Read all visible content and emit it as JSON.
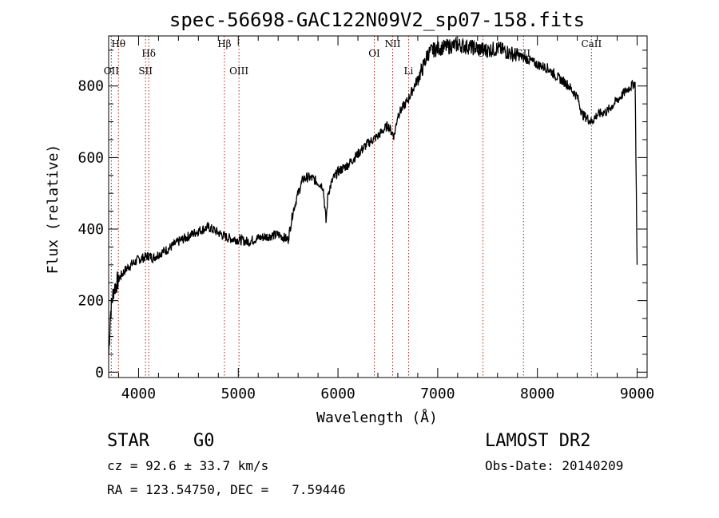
{
  "chart_data": {
    "type": "line",
    "title": "spec-56698-GAC122N09V2_sp07-158.fits",
    "xlabel": "Wavelength (Å)",
    "ylabel": "Flux (relative)",
    "xlim": [
      3700,
      9100
    ],
    "ylim": [
      -15,
      940
    ],
    "x_ticks": [
      4000,
      5000,
      6000,
      7000,
      8000,
      9000
    ],
    "y_ticks": [
      0,
      200,
      400,
      600,
      800
    ],
    "grid": false,
    "series": [
      {
        "x": [
          3700,
          3720,
          3750,
          3800,
          3850,
          3900,
          3950,
          4000,
          4050,
          4100,
          4150,
          4200,
          4300,
          4400,
          4500,
          4600,
          4700,
          4800,
          4860,
          4900,
          5000,
          5100,
          5200,
          5300,
          5400,
          5500,
          5550,
          5600,
          5650,
          5700,
          5750,
          5800,
          5850,
          5880,
          5900,
          5950,
          6000,
          6100,
          6200,
          6300,
          6400,
          6500,
          6563,
          6600,
          6700,
          6800,
          6850,
          6900,
          6950,
          7000,
          7100,
          7200,
          7300,
          7400,
          7500,
          7600,
          7700,
          7800,
          7900,
          8000,
          8100,
          8200,
          8300,
          8400,
          8450,
          8500,
          8542,
          8600,
          8700,
          8800,
          8900,
          8980,
          9000
        ],
        "y": [
          50,
          170,
          230,
          260,
          280,
          295,
          305,
          315,
          320,
          325,
          320,
          330,
          345,
          365,
          380,
          395,
          405,
          390,
          380,
          375,
          370,
          365,
          375,
          380,
          385,
          370,
          450,
          500,
          540,
          545,
          540,
          530,
          520,
          420,
          500,
          540,
          560,
          580,
          610,
          640,
          660,
          690,
          660,
          720,
          760,
          820,
          850,
          890,
          900,
          905,
          910,
          915,
          910,
          905,
          900,
          905,
          895,
          885,
          875,
          860,
          850,
          825,
          805,
          770,
          720,
          710,
          700,
          720,
          730,
          760,
          790,
          810,
          300
        ]
      }
    ],
    "lines": [
      {
        "label": "Hθ",
        "x": 3798,
        "row": 0
      },
      {
        "label": "OII",
        "x": 3727,
        "row": 1
      },
      {
        "label": "Hδ",
        "x": 4102,
        "row": 0.5
      },
      {
        "label": "SII",
        "x": 4070,
        "row": 1
      },
      {
        "label": "Hβ",
        "x": 4861,
        "row": 0
      },
      {
        "label": "OIII",
        "x": 5007,
        "row": 1
      },
      {
        "label": "OI",
        "x": 6364,
        "row": 0.5
      },
      {
        "label": "NII",
        "x": 6548,
        "row": 0
      },
      {
        "label": "Li",
        "x": 6708,
        "row": 1
      },
      {
        "label": "OI",
        "x": 7454,
        "row": 0.5
      },
      {
        "label": "SII",
        "x": 7860,
        "row": 0.5
      },
      {
        "label": "CaII",
        "x": 8542,
        "row": 0
      }
    ]
  },
  "info": {
    "object_type": "STAR",
    "subclass": "G0",
    "survey": "LAMOST DR2",
    "cz": "cz = 92.6 ± 33.7 km/s",
    "obs_date": "Obs-Date: 20140209",
    "coords": "RA = 123.54750, DEC =   7.59446"
  },
  "colors": {
    "spectrum": "#000000",
    "line_marker": "#b22222"
  }
}
